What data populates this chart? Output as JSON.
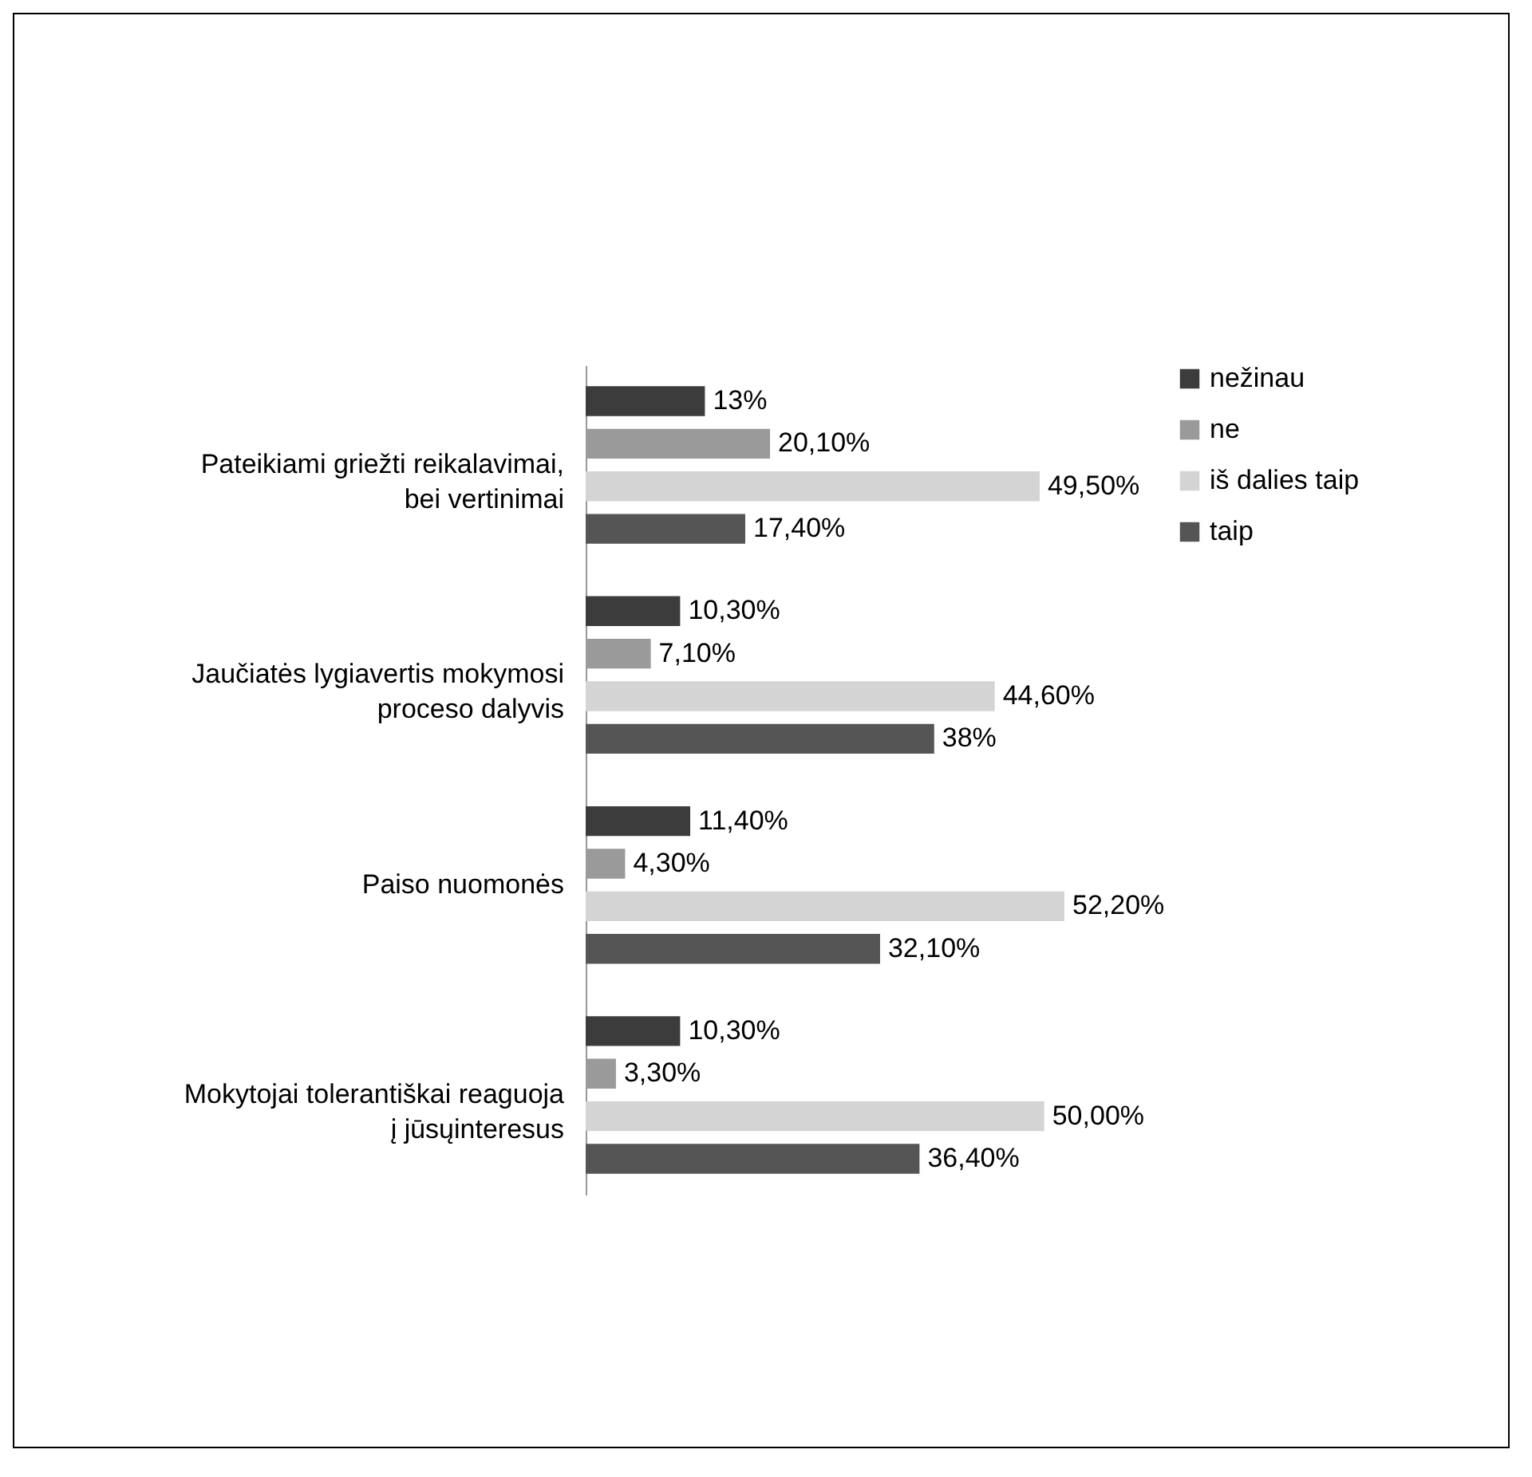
{
  "chart_data": {
    "type": "bar",
    "orientation": "horizontal",
    "legend": "right",
    "grid": false,
    "categories": [
      "Pateikiami griežti reikalavimai, bei vertinimai",
      "Jaučiatės lygiavertis mokymosi proceso dalyvis",
      "Paiso nuomonės",
      "Mokytojai tolerantiškai reaguoja į jūsųinteresus"
    ],
    "series": [
      {
        "name": "nežinau",
        "color": "#3c3c3c",
        "values": [
          13,
          10.3,
          11.4,
          10.3
        ],
        "value_labels": [
          "13%",
          "10,30%",
          "11,40%",
          "10,30%"
        ]
      },
      {
        "name": "ne",
        "color": "#9a9a9a",
        "values": [
          20.1,
          7.1,
          4.3,
          3.3
        ],
        "value_labels": [
          "20,10%",
          "7,10%",
          "4,30%",
          "3,30%"
        ]
      },
      {
        "name": "iš dalies taip",
        "color": "#d4d4d4",
        "values": [
          49.5,
          44.6,
          52.2,
          50
        ],
        "value_labels": [
          "49,50%",
          "44,60%",
          "52,20%",
          "50,00%"
        ]
      },
      {
        "name": "taip",
        "color": "#555555",
        "values": [
          17.4,
          38,
          32.1,
          36.4
        ],
        "value_labels": [
          "17,40%",
          "38%",
          "32,10%",
          "36,40%"
        ]
      }
    ]
  }
}
